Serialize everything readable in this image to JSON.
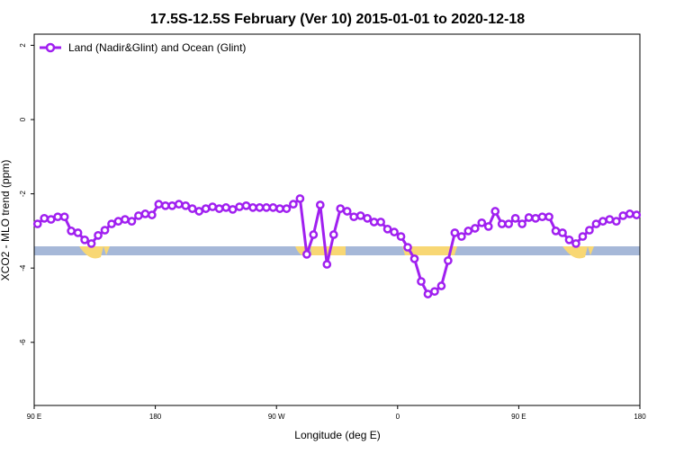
{
  "chart_data": {
    "type": "line",
    "title": "17.5S-12.5S February (Ver 10)   2015-01-01 to 2020-12-18",
    "x_label": "Longitude (deg E)",
    "y_label": "XCO2 - MLO trend (ppm)",
    "xlim": [
      90,
      540
    ],
    "ylim": [
      -7.7,
      2.3
    ],
    "xticks": [
      {
        "value": 90,
        "label": "90 E"
      },
      180,
      {
        "value": 270,
        "label": "90 W"
      },
      {
        "value": 360,
        "label": "0"
      },
      {
        "value": 450,
        "label": "90 E"
      },
      {
        "value": 540,
        "label": "180"
      }
    ],
    "yticks": [
      2,
      0,
      -2,
      -4,
      -6
    ],
    "x": [
      92.5,
      97.5,
      102.5,
      107.5,
      112.5,
      117.5,
      122.5,
      127.5,
      132.5,
      137.5,
      142.5,
      147.5,
      152.5,
      157.5,
      162.5,
      167.5,
      172.5,
      177.5,
      182.5,
      187.5,
      192.5,
      197.5,
      202.5,
      207.5,
      212.5,
      217.5,
      222.5,
      227.5,
      232.5,
      237.5,
      242.5,
      247.5,
      252.5,
      257.5,
      262.5,
      267.5,
      272.5,
      277.5,
      282.5,
      287.5,
      292.5,
      297.5,
      302.5,
      307.5,
      312.5,
      317.5,
      322.5,
      327.5,
      332.5,
      337.5,
      342.5,
      347.5,
      352.5,
      357.5,
      362.5,
      367.5,
      372.5,
      377.5,
      382.5,
      387.5,
      392.5,
      397.5,
      402.5,
      407.5,
      412.5,
      417.5,
      422.5,
      427.5,
      432.5,
      437.5,
      442.5,
      447.5,
      452.5,
      457.5,
      462.5,
      467.5,
      472.5,
      477.5,
      482.5,
      487.5,
      492.5,
      497.5,
      502.5,
      507.5,
      512.5,
      517.5,
      522.5,
      527.5,
      532.5,
      537.5
    ],
    "series": [
      {
        "name": "Land (Nadir&Glint) and Ocean (Glint)",
        "color": "#a020f0",
        "values": [
          -2.81,
          -2.66,
          -2.69,
          -2.62,
          -2.62,
          -3.0,
          -3.05,
          -3.24,
          -3.34,
          -3.12,
          -2.98,
          -2.81,
          -2.74,
          -2.69,
          -2.74,
          -2.59,
          -2.54,
          -2.57,
          -2.28,
          -2.32,
          -2.32,
          -2.28,
          -2.32,
          -2.4,
          -2.47,
          -2.4,
          -2.35,
          -2.4,
          -2.37,
          -2.42,
          -2.35,
          -2.32,
          -2.37,
          -2.37,
          -2.37,
          -2.37,
          -2.4,
          -2.4,
          -2.28,
          -2.13,
          -3.63,
          -3.1,
          -2.3,
          -3.9,
          -3.1,
          -2.4,
          -2.47,
          -2.62,
          -2.59,
          -2.66,
          -2.76,
          -2.76,
          -2.95,
          -3.03,
          -3.15,
          -3.44,
          -3.75,
          -4.36,
          -4.7,
          -4.63,
          -4.48,
          -3.8,
          -3.05,
          -3.15,
          -3.0,
          -2.93,
          -2.78,
          -2.88,
          -2.47,
          -2.81,
          -2.81,
          -2.66,
          -2.81,
          -2.64,
          -2.66,
          -2.62,
          -2.62,
          -3.0,
          -3.05,
          -3.24,
          -3.34,
          -3.15,
          -2.98,
          -2.81,
          -2.74,
          -2.69,
          -2.74,
          -2.59,
          -2.54,
          -2.57
        ]
      }
    ]
  }
}
